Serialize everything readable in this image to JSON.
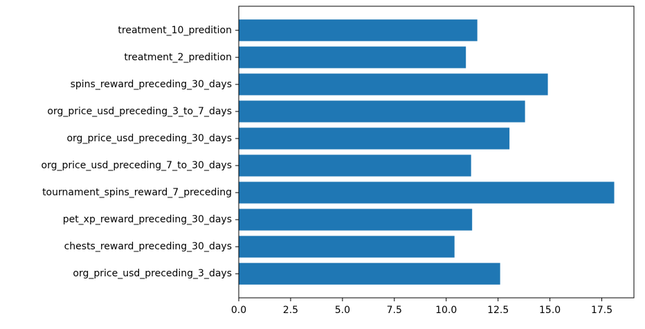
{
  "chart_data": {
    "type": "bar",
    "orientation": "horizontal",
    "title": "",
    "xlabel": "",
    "ylabel": "",
    "categories": [
      "org_price_usd_preceding_3_days",
      "chests_reward_preceding_30_days",
      "pet_xp_reward_preceding_30_days",
      "tournament_spins_reward_7_preceding",
      "org_price_usd_preceding_7_to_30_days",
      "org_price_usd_preceding_30_days",
      "org_price_usd_preceding_3_to_7_days",
      "spins_reward_preceding_30_days",
      "treatment_2_predition",
      "treatment_10_predition"
    ],
    "values": [
      12.6,
      10.4,
      11.25,
      18.1,
      11.2,
      13.05,
      13.8,
      14.9,
      10.95,
      11.5
    ],
    "xlim": [
      0,
      19.05
    ],
    "xticks": [
      0.0,
      2.5,
      5.0,
      7.5,
      10.0,
      12.5,
      15.0,
      17.5
    ],
    "xtick_labels": [
      "0.0",
      "2.5",
      "5.0",
      "7.5",
      "10.0",
      "12.5",
      "15.0",
      "17.5"
    ],
    "bar_color": "#1f77b4",
    "grid": false,
    "legend": "none"
  }
}
